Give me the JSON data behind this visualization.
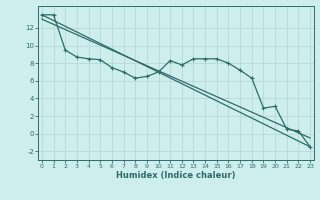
{
  "xlabel": "Humidex (Indice chaleur)",
  "background_color": "#ceeeed",
  "grid_color": "#b8d8d8",
  "line_color": "#2d6b6b",
  "x_data": [
    0,
    1,
    2,
    3,
    4,
    5,
    6,
    7,
    8,
    9,
    10,
    11,
    12,
    13,
    14,
    15,
    16,
    17,
    18,
    19,
    20,
    21,
    22,
    23
  ],
  "y_main": [
    13.5,
    13.5,
    9.5,
    8.7,
    8.5,
    8.4,
    7.5,
    7.0,
    6.3,
    6.5,
    7.0,
    8.3,
    7.8,
    8.5,
    8.5,
    8.5,
    8.0,
    7.2,
    6.3,
    2.9,
    3.1,
    0.5,
    0.3,
    -1.5
  ],
  "reg_line1": [
    [
      0,
      13.5
    ],
    [
      23,
      -1.5
    ]
  ],
  "reg_line2": [
    [
      0,
      13.0
    ],
    [
      23,
      -0.5
    ]
  ],
  "ylim": [
    -3,
    14.5
  ],
  "xlim": [
    -0.3,
    23.3
  ],
  "yticks": [
    -2,
    0,
    2,
    4,
    6,
    8,
    10,
    12
  ],
  "xticks": [
    0,
    1,
    2,
    3,
    4,
    5,
    6,
    7,
    8,
    9,
    10,
    11,
    12,
    13,
    14,
    15,
    16,
    17,
    18,
    19,
    20,
    21,
    22,
    23
  ]
}
